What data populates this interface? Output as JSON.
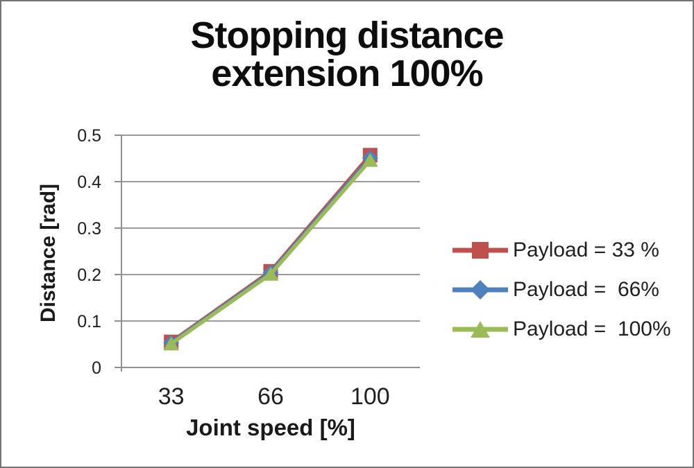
{
  "chart_data": {
    "type": "line",
    "title": "Stopping distance extension 100%",
    "title_lines": {
      "line1": "Stopping distance",
      "line2": "extension 100%"
    },
    "xlabel": "Joint speed [%]",
    "ylabel": "Distance [rad]",
    "categories": [
      "33",
      "66",
      "100"
    ],
    "y_ticks": [
      "0",
      "0.1",
      "0.2",
      "0.3",
      "0.4",
      "0.5"
    ],
    "ylim": [
      0,
      0.5
    ],
    "grid": true,
    "legend_position": "right",
    "series": [
      {
        "name": "Payload = 33 %",
        "color": "#c0504d",
        "marker": "square",
        "values": [
          0.055,
          0.207,
          0.457
        ]
      },
      {
        "name": "Payload =  66%",
        "color": "#4f81bd",
        "marker": "diamond",
        "values": [
          0.053,
          0.204,
          0.451
        ]
      },
      {
        "name": "Payload =  100%",
        "color": "#9bbb59",
        "marker": "triangle",
        "values": [
          0.051,
          0.201,
          0.446
        ]
      }
    ],
    "gridline_color": "#9a9a9a",
    "axis_color": "#8f8f8f",
    "text_color": "#1f1f1f"
  }
}
